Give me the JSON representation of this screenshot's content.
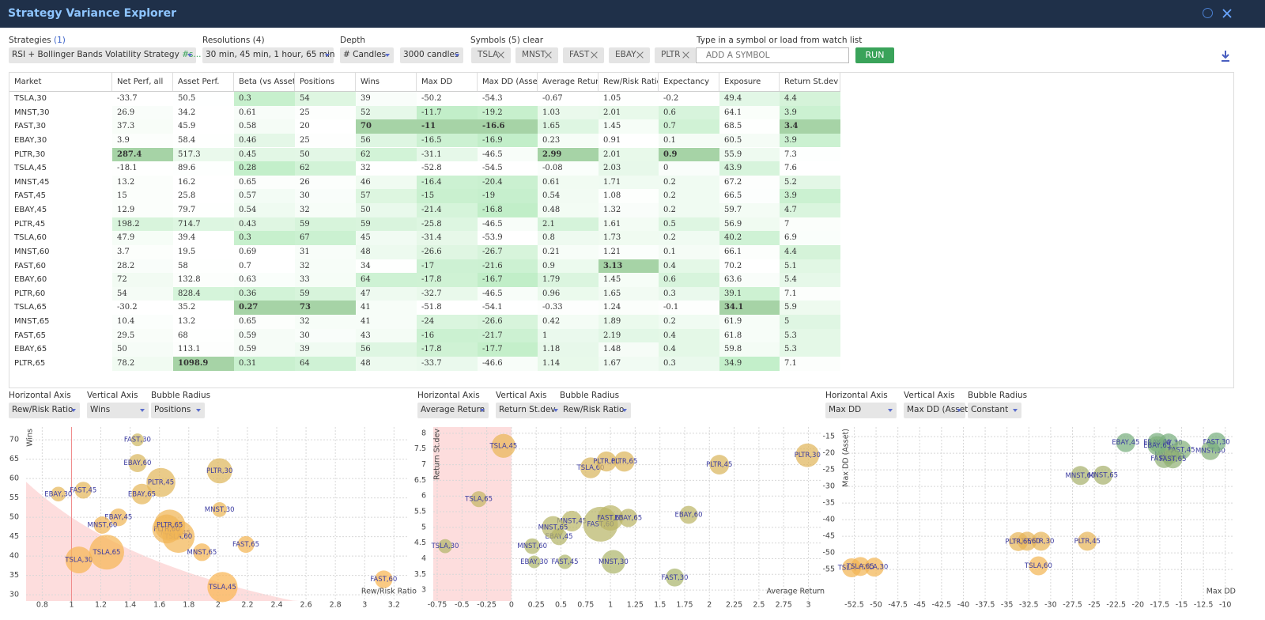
{
  "header": {
    "title": "Strategy Variance Explorer"
  },
  "controls": {
    "strategies": {
      "label": "Strategies",
      "count": "(1)",
      "value": "RSI + Bollinger Bands Volatility Strategy",
      "tag": "#s..."
    },
    "resolutions": {
      "label": "Resolutions (4)",
      "value": "30 min, 45 min, 1 hour, 65 min"
    },
    "depth": {
      "label": "Depth",
      "mode": "# Candles",
      "value": "3000 candles"
    },
    "symbols": {
      "label": "Symbols (5)",
      "clear": "clear",
      "chips": [
        "TSLA",
        "MNST",
        "FAST",
        "EBAY",
        "PLTR"
      ]
    },
    "add_symbol": {
      "label": "Type in a symbol or load from watch list",
      "placeholder": "ADD A SYMBOL"
    },
    "run": "RUN"
  },
  "table": {
    "columns": [
      "Market",
      "Net Perf, all",
      "Asset Perf.",
      "Beta (vs Asset)",
      "Positions",
      "Wins",
      "Max DD",
      "Max DD (Asset)",
      "Average Return",
      "Rew/Risk Ratio",
      "Expectancy",
      "Exposure",
      "Return St.dev"
    ],
    "lower_is_better": [
      3,
      11,
      12
    ],
    "rows": [
      [
        "TSLA,30",
        -33.7,
        50.5,
        0.3,
        54,
        39,
        -50.2,
        -54.3,
        -0.67,
        1.05,
        -0.2,
        49.4,
        4.4
      ],
      [
        "MNST,30",
        26.9,
        34.2,
        0.61,
        25,
        52,
        -11.7,
        -19.2,
        1.03,
        2.01,
        0.6,
        64.1,
        3.9
      ],
      [
        "FAST,30",
        37.3,
        45.9,
        0.58,
        20,
        70,
        -11,
        -16.6,
        1.65,
        1.45,
        0.7,
        68.5,
        3.4
      ],
      [
        "EBAY,30",
        3.9,
        58.4,
        0.46,
        25,
        56,
        -16.5,
        -16.9,
        0.23,
        0.91,
        0.1,
        60.5,
        3.9
      ],
      [
        "PLTR,30",
        287.4,
        517.3,
        0.45,
        50,
        62,
        -31.1,
        -46.5,
        2.99,
        2.01,
        0.9,
        55.9,
        7.3
      ],
      [
        "TSLA,45",
        -18.1,
        89.6,
        0.28,
        62,
        32,
        -52.8,
        -54.5,
        -0.08,
        2.03,
        0,
        43.9,
        7.6
      ],
      [
        "MNST,45",
        13.2,
        16.2,
        0.65,
        26,
        46,
        -16.4,
        -20.4,
        0.61,
        1.71,
        0.2,
        67.2,
        5.2
      ],
      [
        "FAST,45",
        15,
        25.8,
        0.57,
        30,
        57,
        -15,
        -19,
        0.54,
        1.08,
        0.2,
        66.5,
        3.9
      ],
      [
        "EBAY,45",
        12.9,
        79.7,
        0.54,
        32,
        50,
        -21.4,
        -16.8,
        0.48,
        1.32,
        0.2,
        59.7,
        4.7
      ],
      [
        "PLTR,45",
        198.2,
        714.7,
        0.43,
        59,
        59,
        -25.8,
        -46.5,
        2.1,
        1.61,
        0.5,
        56.9,
        7
      ],
      [
        "TSLA,60",
        47.9,
        39.4,
        0.3,
        67,
        45,
        -31.4,
        -53.9,
        0.8,
        1.73,
        0.2,
        40.2,
        6.9
      ],
      [
        "MNST,60",
        3.7,
        19.5,
        0.69,
        31,
        48,
        -26.6,
        -26.7,
        0.21,
        1.21,
        0.1,
        66.1,
        4.4
      ],
      [
        "FAST,60",
        28.2,
        58,
        0.7,
        32,
        34,
        -17,
        -21.6,
        0.9,
        3.13,
        0.4,
        70.2,
        5.1
      ],
      [
        "EBAY,60",
        72,
        132.8,
        0.63,
        33,
        64,
        -17.8,
        -16.7,
        1.79,
        1.45,
        0.6,
        63.6,
        5.4
      ],
      [
        "PLTR,60",
        54,
        828.4,
        0.36,
        59,
        47,
        -32.7,
        -46.5,
        0.96,
        1.65,
        0.3,
        39.1,
        7.1
      ],
      [
        "TSLA,65",
        -30.2,
        35.2,
        0.27,
        73,
        41,
        -51.8,
        -54.1,
        -0.33,
        1.24,
        -0.1,
        34.1,
        5.9
      ],
      [
        "MNST,65",
        10.4,
        13.2,
        0.65,
        32,
        41,
        -24,
        -26.6,
        0.42,
        1.89,
        0.2,
        61.9,
        5
      ],
      [
        "FAST,65",
        29.5,
        68,
        0.59,
        30,
        43,
        -16,
        -21.7,
        1,
        2.19,
        0.4,
        61.8,
        5.3
      ],
      [
        "EBAY,65",
        50,
        113.1,
        0.59,
        39,
        56,
        -17.8,
        -17.7,
        1.18,
        1.48,
        0.4,
        59.8,
        5.3
      ],
      [
        "PLTR,65",
        78.2,
        1098.9,
        0.31,
        64,
        48,
        -33.7,
        -46.6,
        1.14,
        1.67,
        0.3,
        34.9,
        7.1
      ]
    ]
  },
  "charts": [
    {
      "type": "bubble",
      "controls": {
        "horizontal_label": "Horizontal Axis",
        "horizontal": "Rew/Risk Ratio",
        "vertical_label": "Vertical Axis",
        "vertical": "Wins",
        "radius_label": "Bubble Radius",
        "radius": "Positions"
      },
      "x_column": 9,
      "y_column": 5,
      "radius_column": 4,
      "x_title": "Rew/Risk Ratio",
      "y_title": "Wins",
      "xlim": [
        0.69,
        3.29
      ],
      "ylim": [
        28.4,
        73.3
      ],
      "xticks": [
        0.8,
        1,
        1.2,
        1.4,
        1.6,
        1.8,
        2,
        2.2,
        2.4,
        2.6,
        2.8,
        3,
        3.2
      ],
      "yticks": [
        30,
        35,
        40,
        45,
        50,
        55,
        60,
        65,
        70
      ],
      "grid": true,
      "reference_x": 1,
      "shade": "breakeven",
      "bubble_colors": [
        "#f9b653",
        "#c8b865"
      ]
    },
    {
      "type": "bubble",
      "controls": {
        "horizontal_label": "Horizontal Axis",
        "horizontal": "Average Return",
        "vertical_label": "Vertical Axis",
        "vertical": "Return St.dev",
        "radius_label": "Bubble Radius",
        "radius": "Rew/Risk Ratio"
      },
      "x_column": 8,
      "y_column": 12,
      "radius_column": 9,
      "x_title": "Average Return",
      "y_title": "Return St.dev",
      "xlim": [
        -0.79,
        3.14
      ],
      "ylim": [
        2.65,
        8.2
      ],
      "xticks": [
        -0.75,
        -0.5,
        -0.25,
        0,
        0.25,
        0.5,
        0.75,
        1,
        1.25,
        1.5,
        1.75,
        2,
        2.25,
        2.5,
        2.75,
        3
      ],
      "yticks": [
        3,
        3.5,
        4,
        4.5,
        5,
        5.5,
        6,
        6.5,
        7,
        7.5,
        8
      ],
      "grid": true,
      "shade_left_of_x": 0,
      "bubble_colors": [
        "#a9b56d",
        "#f9b653"
      ]
    },
    {
      "type": "bubble",
      "controls": {
        "horizontal_label": "Horizontal Axis",
        "horizontal": "Max DD",
        "vertical_label": "Vertical Axis",
        "vertical": "Max DD (Asset)",
        "radius_label": "Bubble Radius",
        "radius": "Constant"
      },
      "x_column": 6,
      "y_column": 7,
      "x_title": "Max DD",
      "y_title": "Max DD (Asset)",
      "xlim": [
        -53.9,
        -9.07
      ],
      "ylim": [
        -64.5,
        -12.1
      ],
      "xticks": [
        -52.5,
        -50,
        -47.5,
        -45,
        -42.5,
        -40,
        -37.5,
        -35,
        -32.5,
        -30,
        -27.5,
        -25,
        -22.5,
        -20,
        -17.5,
        -15,
        -12.5,
        -10
      ],
      "yticks": [
        -55,
        -50,
        -45,
        -40,
        -35,
        -30,
        -25,
        -20,
        -15
      ],
      "grid": true,
      "bubble_colors": [
        "#f9b653",
        "#5eae87"
      ]
    }
  ]
}
